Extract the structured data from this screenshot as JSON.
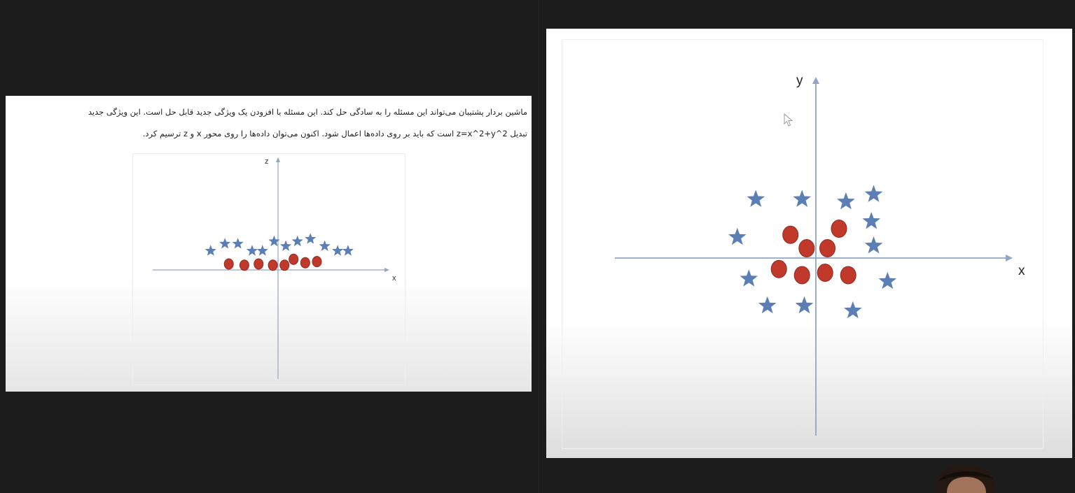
{
  "left_slide": {
    "paragraph_line1": "ماشین بردار پشتیبان می‌تواند این مسئله را به سادگی حل کند. این مسئله با افزودن یک ویژگی جدید قابل حل است. این ویژگی جدید",
    "paragraph_line2": "تبدیل z=x^2+y^2 است که باید بر روی داده‌ها اعمال شود. اکنون می‌توان داده‌ها را روی محور x و z ترسیم کرد."
  },
  "chart_data": [
    {
      "type": "scatter",
      "xlabel": "x",
      "ylabel": "z",
      "series": [
        {
          "marker": "star",
          "color": "#5b7fb5",
          "points": [
            [
              -5.2,
              0.8
            ],
            [
              -4.1,
              1.1
            ],
            [
              -3.1,
              1.1
            ],
            [
              -2.0,
              0.8
            ],
            [
              -1.2,
              0.8
            ],
            [
              -0.3,
              1.2
            ],
            [
              0.6,
              1.0
            ],
            [
              1.5,
              1.2
            ],
            [
              2.5,
              1.3
            ],
            [
              3.6,
              1.0
            ],
            [
              4.6,
              0.8
            ],
            [
              5.4,
              0.8
            ]
          ]
        },
        {
          "marker": "circle",
          "color": "#c0392b",
          "points": [
            [
              -3.8,
              0.25
            ],
            [
              -2.6,
              0.2
            ],
            [
              -1.5,
              0.25
            ],
            [
              -0.4,
              0.2
            ],
            [
              0.5,
              0.2
            ],
            [
              1.2,
              0.45
            ],
            [
              2.1,
              0.3
            ],
            [
              3.0,
              0.35
            ]
          ]
        }
      ],
      "xlim": [
        -9,
        8
      ],
      "ylim": [
        -4.2,
        4.2
      ]
    },
    {
      "type": "scatter",
      "xlabel": "x",
      "ylabel": "y",
      "series": [
        {
          "marker": "star",
          "color": "#5b7fb5",
          "points": [
            [
              -2.6,
              2.4
            ],
            [
              -0.6,
              2.4
            ],
            [
              1.3,
              2.3
            ],
            [
              2.5,
              2.6
            ],
            [
              -3.4,
              0.85
            ],
            [
              2.4,
              1.5
            ],
            [
              2.5,
              0.5
            ],
            [
              -2.9,
              -0.85
            ],
            [
              3.1,
              -0.95
            ],
            [
              -2.1,
              -1.95
            ],
            [
              -0.5,
              -1.95
            ],
            [
              1.6,
              -2.15
            ]
          ]
        },
        {
          "marker": "circle",
          "color": "#c0392b",
          "points": [
            [
              -1.1,
              0.95
            ],
            [
              -0.4,
              0.4
            ],
            [
              0.5,
              0.4
            ],
            [
              1.0,
              1.2
            ],
            [
              -1.6,
              -0.45
            ],
            [
              -0.6,
              -0.7
            ],
            [
              0.4,
              -0.6
            ],
            [
              1.4,
              -0.7
            ]
          ]
        }
      ],
      "xlim": [
        -9,
        8
      ],
      "ylim": [
        -7,
        7
      ]
    }
  ]
}
